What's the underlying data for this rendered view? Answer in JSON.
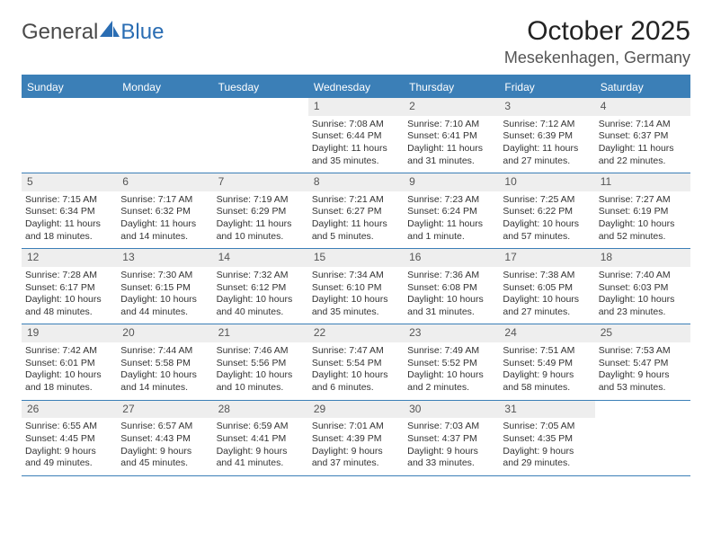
{
  "brand": {
    "part1": "General",
    "part2": "Blue",
    "accent_color": "#2a6db3"
  },
  "title": "October 2025",
  "location": "Mesekenhagen, Germany",
  "colors": {
    "header_bg": "#3b7fb7",
    "header_text": "#ffffff",
    "daynum_bg": "#eeeeee",
    "rule": "#3b7fb7",
    "text": "#333333"
  },
  "day_headers": [
    "Sunday",
    "Monday",
    "Tuesday",
    "Wednesday",
    "Thursday",
    "Friday",
    "Saturday"
  ],
  "weeks": [
    [
      {
        "day": "",
        "sunrise": "",
        "sunset": "",
        "daylight": ""
      },
      {
        "day": "",
        "sunrise": "",
        "sunset": "",
        "daylight": ""
      },
      {
        "day": "",
        "sunrise": "",
        "sunset": "",
        "daylight": ""
      },
      {
        "day": "1",
        "sunrise": "Sunrise: 7:08 AM",
        "sunset": "Sunset: 6:44 PM",
        "daylight": "Daylight: 11 hours and 35 minutes."
      },
      {
        "day": "2",
        "sunrise": "Sunrise: 7:10 AM",
        "sunset": "Sunset: 6:41 PM",
        "daylight": "Daylight: 11 hours and 31 minutes."
      },
      {
        "day": "3",
        "sunrise": "Sunrise: 7:12 AM",
        "sunset": "Sunset: 6:39 PM",
        "daylight": "Daylight: 11 hours and 27 minutes."
      },
      {
        "day": "4",
        "sunrise": "Sunrise: 7:14 AM",
        "sunset": "Sunset: 6:37 PM",
        "daylight": "Daylight: 11 hours and 22 minutes."
      }
    ],
    [
      {
        "day": "5",
        "sunrise": "Sunrise: 7:15 AM",
        "sunset": "Sunset: 6:34 PM",
        "daylight": "Daylight: 11 hours and 18 minutes."
      },
      {
        "day": "6",
        "sunrise": "Sunrise: 7:17 AM",
        "sunset": "Sunset: 6:32 PM",
        "daylight": "Daylight: 11 hours and 14 minutes."
      },
      {
        "day": "7",
        "sunrise": "Sunrise: 7:19 AM",
        "sunset": "Sunset: 6:29 PM",
        "daylight": "Daylight: 11 hours and 10 minutes."
      },
      {
        "day": "8",
        "sunrise": "Sunrise: 7:21 AM",
        "sunset": "Sunset: 6:27 PM",
        "daylight": "Daylight: 11 hours and 5 minutes."
      },
      {
        "day": "9",
        "sunrise": "Sunrise: 7:23 AM",
        "sunset": "Sunset: 6:24 PM",
        "daylight": "Daylight: 11 hours and 1 minute."
      },
      {
        "day": "10",
        "sunrise": "Sunrise: 7:25 AM",
        "sunset": "Sunset: 6:22 PM",
        "daylight": "Daylight: 10 hours and 57 minutes."
      },
      {
        "day": "11",
        "sunrise": "Sunrise: 7:27 AM",
        "sunset": "Sunset: 6:19 PM",
        "daylight": "Daylight: 10 hours and 52 minutes."
      }
    ],
    [
      {
        "day": "12",
        "sunrise": "Sunrise: 7:28 AM",
        "sunset": "Sunset: 6:17 PM",
        "daylight": "Daylight: 10 hours and 48 minutes."
      },
      {
        "day": "13",
        "sunrise": "Sunrise: 7:30 AM",
        "sunset": "Sunset: 6:15 PM",
        "daylight": "Daylight: 10 hours and 44 minutes."
      },
      {
        "day": "14",
        "sunrise": "Sunrise: 7:32 AM",
        "sunset": "Sunset: 6:12 PM",
        "daylight": "Daylight: 10 hours and 40 minutes."
      },
      {
        "day": "15",
        "sunrise": "Sunrise: 7:34 AM",
        "sunset": "Sunset: 6:10 PM",
        "daylight": "Daylight: 10 hours and 35 minutes."
      },
      {
        "day": "16",
        "sunrise": "Sunrise: 7:36 AM",
        "sunset": "Sunset: 6:08 PM",
        "daylight": "Daylight: 10 hours and 31 minutes."
      },
      {
        "day": "17",
        "sunrise": "Sunrise: 7:38 AM",
        "sunset": "Sunset: 6:05 PM",
        "daylight": "Daylight: 10 hours and 27 minutes."
      },
      {
        "day": "18",
        "sunrise": "Sunrise: 7:40 AM",
        "sunset": "Sunset: 6:03 PM",
        "daylight": "Daylight: 10 hours and 23 minutes."
      }
    ],
    [
      {
        "day": "19",
        "sunrise": "Sunrise: 7:42 AM",
        "sunset": "Sunset: 6:01 PM",
        "daylight": "Daylight: 10 hours and 18 minutes."
      },
      {
        "day": "20",
        "sunrise": "Sunrise: 7:44 AM",
        "sunset": "Sunset: 5:58 PM",
        "daylight": "Daylight: 10 hours and 14 minutes."
      },
      {
        "day": "21",
        "sunrise": "Sunrise: 7:46 AM",
        "sunset": "Sunset: 5:56 PM",
        "daylight": "Daylight: 10 hours and 10 minutes."
      },
      {
        "day": "22",
        "sunrise": "Sunrise: 7:47 AM",
        "sunset": "Sunset: 5:54 PM",
        "daylight": "Daylight: 10 hours and 6 minutes."
      },
      {
        "day": "23",
        "sunrise": "Sunrise: 7:49 AM",
        "sunset": "Sunset: 5:52 PM",
        "daylight": "Daylight: 10 hours and 2 minutes."
      },
      {
        "day": "24",
        "sunrise": "Sunrise: 7:51 AM",
        "sunset": "Sunset: 5:49 PM",
        "daylight": "Daylight: 9 hours and 58 minutes."
      },
      {
        "day": "25",
        "sunrise": "Sunrise: 7:53 AM",
        "sunset": "Sunset: 5:47 PM",
        "daylight": "Daylight: 9 hours and 53 minutes."
      }
    ],
    [
      {
        "day": "26",
        "sunrise": "Sunrise: 6:55 AM",
        "sunset": "Sunset: 4:45 PM",
        "daylight": "Daylight: 9 hours and 49 minutes."
      },
      {
        "day": "27",
        "sunrise": "Sunrise: 6:57 AM",
        "sunset": "Sunset: 4:43 PM",
        "daylight": "Daylight: 9 hours and 45 minutes."
      },
      {
        "day": "28",
        "sunrise": "Sunrise: 6:59 AM",
        "sunset": "Sunset: 4:41 PM",
        "daylight": "Daylight: 9 hours and 41 minutes."
      },
      {
        "day": "29",
        "sunrise": "Sunrise: 7:01 AM",
        "sunset": "Sunset: 4:39 PM",
        "daylight": "Daylight: 9 hours and 37 minutes."
      },
      {
        "day": "30",
        "sunrise": "Sunrise: 7:03 AM",
        "sunset": "Sunset: 4:37 PM",
        "daylight": "Daylight: 9 hours and 33 minutes."
      },
      {
        "day": "31",
        "sunrise": "Sunrise: 7:05 AM",
        "sunset": "Sunset: 4:35 PM",
        "daylight": "Daylight: 9 hours and 29 minutes."
      },
      {
        "day": "",
        "sunrise": "",
        "sunset": "",
        "daylight": ""
      }
    ]
  ]
}
